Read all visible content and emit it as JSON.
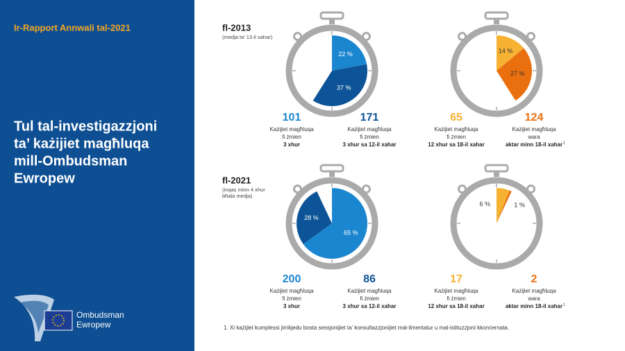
{
  "report_title": "Ir-Rapport Annwali tal-2021",
  "main_title": [
    "Tul tal-investigazzjoni",
    "ta’ każijiet magħluqa",
    "mill-Ombudsman",
    "Ewropew"
  ],
  "logo": [
    "Ombudsman",
    "Ewropew"
  ],
  "footnote": "1.  Xi każijiet kumplessi jirrikjedu bosta sessjonijiet ta’ konsultazzjonijiet mal-ilmentatur u mal-istituzzjoni kkonċernata.",
  "periods": [
    {
      "label": "fl-2013",
      "note": [
        "(medja ta’ 13-il xahar)"
      ],
      "clocks": [
        {
          "segments": [
            {
              "value": 22,
              "label": "22 %",
              "color": "#1b86d0"
            },
            {
              "value": 37,
              "label": "37 %",
              "color": "#0c5497"
            }
          ],
          "stats": [
            {
              "count": 101,
              "color": "#1b86d0",
              "lines": [
                "Każijiet magħluqa",
                "fi żmien"
              ],
              "bold": "3 xhur"
            },
            {
              "count": 171,
              "color": "#0c5497",
              "lines": [
                "Każijiet magħluqa",
                "fi żmien"
              ],
              "bold": "3 xhur sa 12-il xahar"
            }
          ]
        },
        {
          "segments": [
            {
              "value": 14,
              "label": "14 %",
              "color": "#f7b133"
            },
            {
              "value": 27,
              "label": "27 %",
              "color": "#ea6f0f"
            }
          ],
          "stats": [
            {
              "count": 65,
              "color": "#f7b133",
              "lines": [
                "Każijiet magħluqa",
                "fi żmien"
              ],
              "bold": "12 xhur sa 18-il xahar"
            },
            {
              "count": 124,
              "color": "#ea6f0f",
              "lines": [
                "Każijiet magħluqa",
                "wara"
              ],
              "bold": "aktar minn 18-il xahar",
              "ref": "1"
            }
          ]
        }
      ]
    },
    {
      "label": "fl-2021",
      "note": [
        "(inqas minn 4 xhur",
        "bħala medja)"
      ],
      "clocks": [
        {
          "segments": [
            {
              "value": 65,
              "label": "65 %",
              "color": "#1b86d0"
            },
            {
              "value": 28,
              "label": "28 %",
              "color": "#0c5497"
            }
          ],
          "stats": [
            {
              "count": 200,
              "color": "#1b86d0",
              "lines": [
                "Każijiet magħluqa",
                "fi żmien"
              ],
              "bold": "3 xhur"
            },
            {
              "count": 86,
              "color": "#0c5497",
              "lines": [
                "Każijiet magħluqa",
                "fi żmien"
              ],
              "bold": "3 xhur sa 12-il xahar"
            }
          ]
        },
        {
          "segments": [
            {
              "value": 6,
              "label": "6 %",
              "color": "#f7b133"
            },
            {
              "value": 1,
              "label": "1 %",
              "color": "#ea6f0f"
            }
          ],
          "stats": [
            {
              "count": 17,
              "color": "#f7b133",
              "lines": [
                "Każijiet magħluqa",
                "fi żmien"
              ],
              "bold": "12 xhur sa 18-il xahar"
            },
            {
              "count": 2,
              "color": "#ea6f0f",
              "lines": [
                "Każijiet magħluqa",
                "wara"
              ],
              "bold": "aktar minn 18-il xahar",
              "ref": "1"
            }
          ]
        }
      ]
    }
  ]
}
